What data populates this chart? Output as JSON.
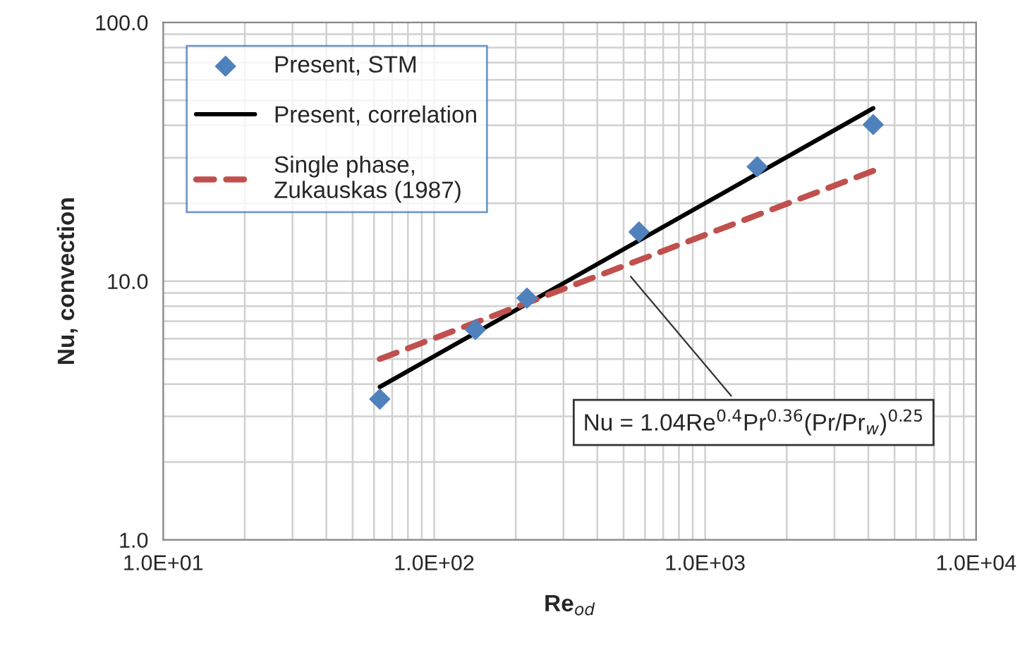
{
  "chart_data": {
    "type": "scatter",
    "xlabel": "Re$_{od}$",
    "ylabel": "Nu, convection",
    "series": [
      {
        "name": "Present, STM",
        "color": "#4f81bd",
        "marker": "diamond",
        "x": [
          63,
          142,
          220,
          570,
          1556,
          4170
        ],
        "values": [
          3.5,
          6.5,
          8.6,
          15.5,
          27.7,
          40.3
        ]
      },
      {
        "name": "Present, correlation",
        "type": "line",
        "color": "#000000",
        "line_style": "solid",
        "x": [
          63,
          4170
        ],
        "values": [
          3.9,
          46.6
        ]
      },
      {
        "name": "Single phase,\nZukauskas (1987)",
        "type": "line",
        "color": "#c0504d",
        "line_style": "dashed",
        "x": [
          63,
          4170
        ],
        "values": [
          5.0,
          26.7
        ]
      }
    ],
    "annotations": [
      {
        "text": "Nu = 1.04Re$^{0.4}$Pr$^{0.36}$(Pr/Pr$_{w}$)$^{0.25}$",
        "x": 520,
        "y": 10.7
      }
    ],
    "log": "xy",
    "xlim": [
      10,
      10000
    ],
    "ylim": [
      1,
      100
    ],
    "xticks": [
      {
        "value": 10,
        "label": "1.0E+01"
      },
      {
        "value": 100,
        "label": "1.0E+02"
      },
      {
        "value": 1000,
        "label": "1.0E+03"
      },
      {
        "value": 10000,
        "label": "1.0E+04"
      }
    ],
    "yticks": [
      {
        "value": 1,
        "label": "1.0"
      },
      {
        "value": 10,
        "label": "10.0"
      },
      {
        "value": 100,
        "label": "100.0"
      }
    ],
    "grid": true,
    "legend": "top left"
  }
}
